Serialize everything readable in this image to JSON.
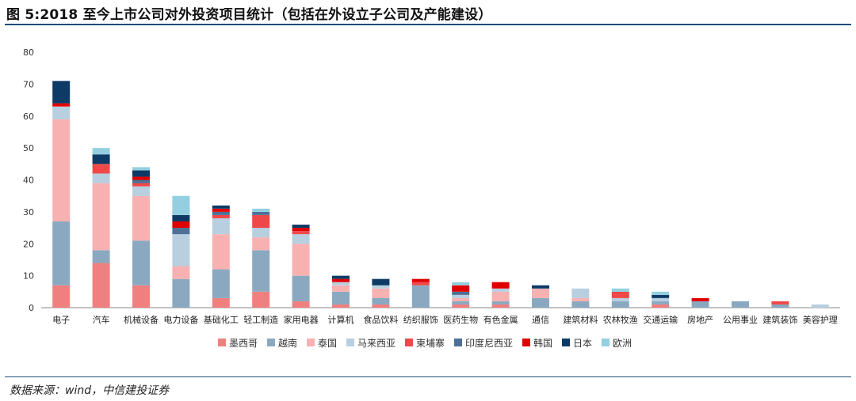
{
  "title": "图 5:2018 至今上市公司对外投资项目统计（包括在外设立子公司及产能建设）",
  "source": "数据来源：wind，中信建投证券",
  "chart_data": {
    "type": "bar",
    "stacked": true,
    "ylim": [
      0,
      80
    ],
    "yticks": [
      0,
      10,
      20,
      30,
      40,
      50,
      60,
      70,
      80
    ],
    "grid": false,
    "legend_position": "bottom",
    "categories": [
      "电子",
      "汽车",
      "机械设备",
      "电力设备",
      "基础化工",
      "轻工制造",
      "家用电器",
      "计算机",
      "食品饮料",
      "纺织服饰",
      "医药生物",
      "有色金属",
      "通信",
      "建筑材料",
      "农林牧渔",
      "交通运输",
      "房地产",
      "公用事业",
      "建筑装饰",
      "美容护理"
    ],
    "series": [
      {
        "name": "墨西哥",
        "color": "#f08080",
        "values": [
          7,
          14,
          7,
          0,
          3,
          5,
          2,
          1,
          1,
          0,
          1,
          1,
          0,
          0,
          0,
          1,
          0,
          0,
          0,
          0
        ]
      },
      {
        "name": "越南",
        "color": "#8aa9c1",
        "values": [
          20,
          4,
          14,
          9,
          9,
          13,
          8,
          4,
          2,
          7,
          1,
          1,
          3,
          2,
          2,
          1,
          2,
          2,
          1,
          0
        ]
      },
      {
        "name": "泰国",
        "color": "#f8b1b1",
        "values": [
          32,
          21,
          14,
          4,
          11,
          4,
          10,
          2,
          3,
          0,
          1,
          3,
          3,
          1,
          0,
          0,
          0,
          0,
          0,
          0
        ]
      },
      {
        "name": "马来西亚",
        "color": "#b8cfe0",
        "values": [
          4,
          3,
          3,
          10,
          5,
          3,
          3,
          1,
          1,
          0,
          1,
          1,
          0,
          3,
          1,
          1,
          0,
          0,
          0,
          1
        ]
      },
      {
        "name": "柬埔寨",
        "color": "#f04848",
        "values": [
          0,
          3,
          1,
          0,
          1,
          4,
          1,
          0,
          0,
          1,
          0,
          0,
          0,
          0,
          2,
          0,
          0,
          0,
          1,
          0
        ]
      },
      {
        "name": "印度尼西亚",
        "color": "#4d7096",
        "values": [
          0,
          0,
          1,
          2,
          1,
          1,
          0,
          0,
          0,
          0,
          1,
          0,
          0,
          0,
          0,
          0,
          0,
          0,
          0,
          0
        ]
      },
      {
        "name": "韩国",
        "color": "#e00000",
        "values": [
          1,
          0,
          1,
          2,
          1,
          0,
          1,
          1,
          0,
          1,
          2,
          2,
          0,
          0,
          0,
          0,
          1,
          0,
          0,
          0
        ]
      },
      {
        "name": "日本",
        "color": "#0d3b66",
        "values": [
          7,
          3,
          2,
          2,
          1,
          0,
          1,
          1,
          2,
          0,
          0,
          0,
          1,
          0,
          0,
          1,
          0,
          0,
          0,
          0
        ]
      },
      {
        "name": "欧洲",
        "color": "#93cfe0",
        "values": [
          0,
          2,
          1,
          6,
          0,
          1,
          0,
          0,
          0,
          0,
          1,
          0,
          0,
          0,
          1,
          1,
          0,
          0,
          0,
          0
        ]
      }
    ]
  }
}
